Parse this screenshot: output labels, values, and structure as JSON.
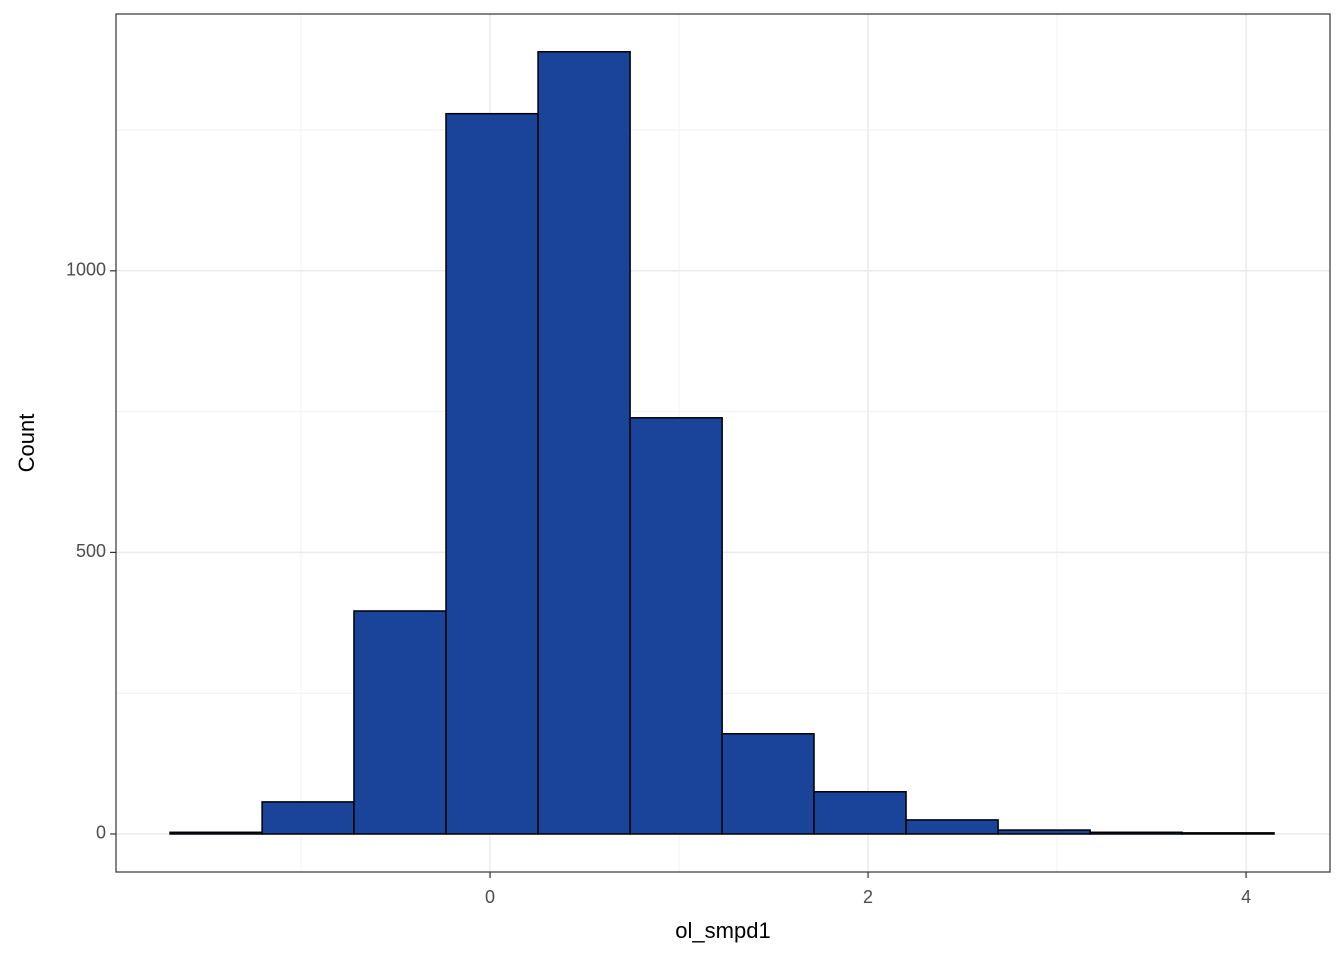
{
  "chart_data": {
    "type": "histogram",
    "xlabel": "ol_smpd1",
    "ylabel": "Count",
    "bins": [
      -1.693,
      -1.206,
      -0.72,
      -0.233,
      0.254,
      0.741,
      1.228,
      1.714,
      2.201,
      2.688,
      3.175,
      3.661,
      4.148
    ],
    "values": [
      3,
      57,
      396,
      1279,
      1389,
      739,
      178,
      75,
      25,
      7,
      3,
      2
    ],
    "color": "#1a439a",
    "xlim": [
      -1.979,
      4.444
    ],
    "ylim": [
      -67.5,
      1456
    ],
    "xticks": [
      0,
      2,
      4
    ],
    "yticks": [
      0,
      500,
      1000
    ],
    "x_minor_ticks": [
      -1,
      1,
      3
    ],
    "y_minor_ticks": [
      250,
      750,
      1250
    ],
    "grid": true
  }
}
